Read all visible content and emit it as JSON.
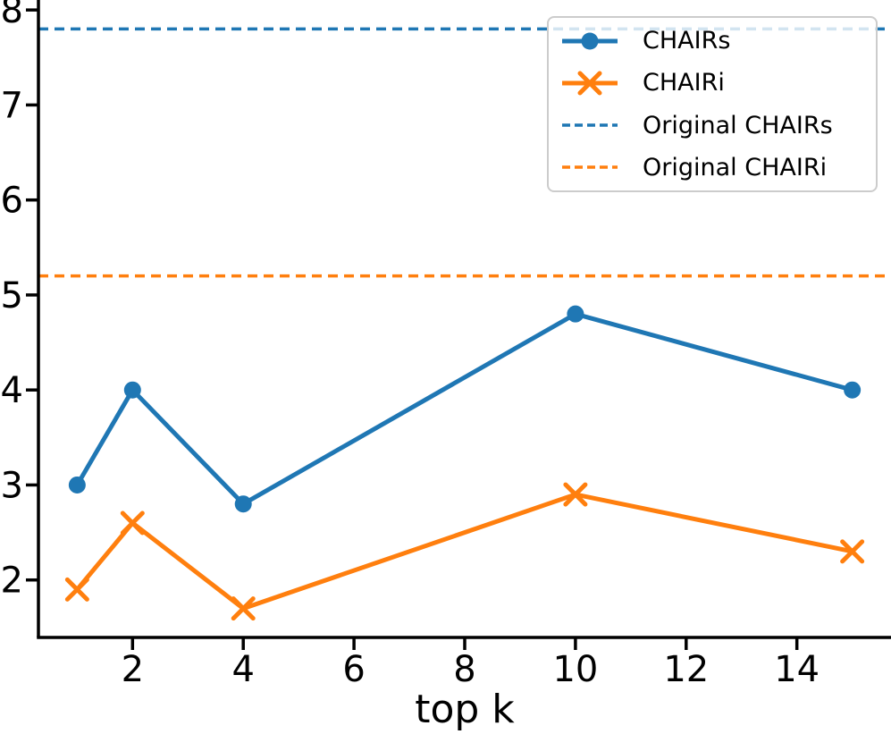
{
  "chart_data": {
    "type": "line",
    "title": "",
    "xlabel": "top k",
    "ylabel": "",
    "x": [
      1,
      2,
      4,
      10,
      15
    ],
    "series": [
      {
        "name": "CHAIRs",
        "color": "#1f77b4",
        "marker": "circle",
        "values": [
          3.0,
          4.0,
          2.8,
          4.8,
          4.0
        ]
      },
      {
        "name": "CHAIRi",
        "color": "#ff7f0e",
        "marker": "x",
        "values": [
          1.9,
          2.6,
          1.7,
          2.9,
          2.3
        ]
      }
    ],
    "hlines": [
      {
        "name": "Original CHAIRs",
        "color": "#1f77b4",
        "value": 7.8,
        "style": "dashed"
      },
      {
        "name": "Original CHAIRi",
        "color": "#ff7f0e",
        "value": 5.2,
        "style": "dashed"
      }
    ],
    "xticks": [
      2,
      4,
      6,
      8,
      10,
      12,
      14
    ],
    "yticks": [
      2,
      3,
      4,
      5,
      6,
      7,
      8
    ],
    "xlim": [
      0.3,
      15.7
    ],
    "ylim": [
      1.395,
      8.105
    ],
    "grid": false,
    "legend_position": "upper right",
    "axis_color": "#000000",
    "legend_border_color": "#cccccc"
  }
}
